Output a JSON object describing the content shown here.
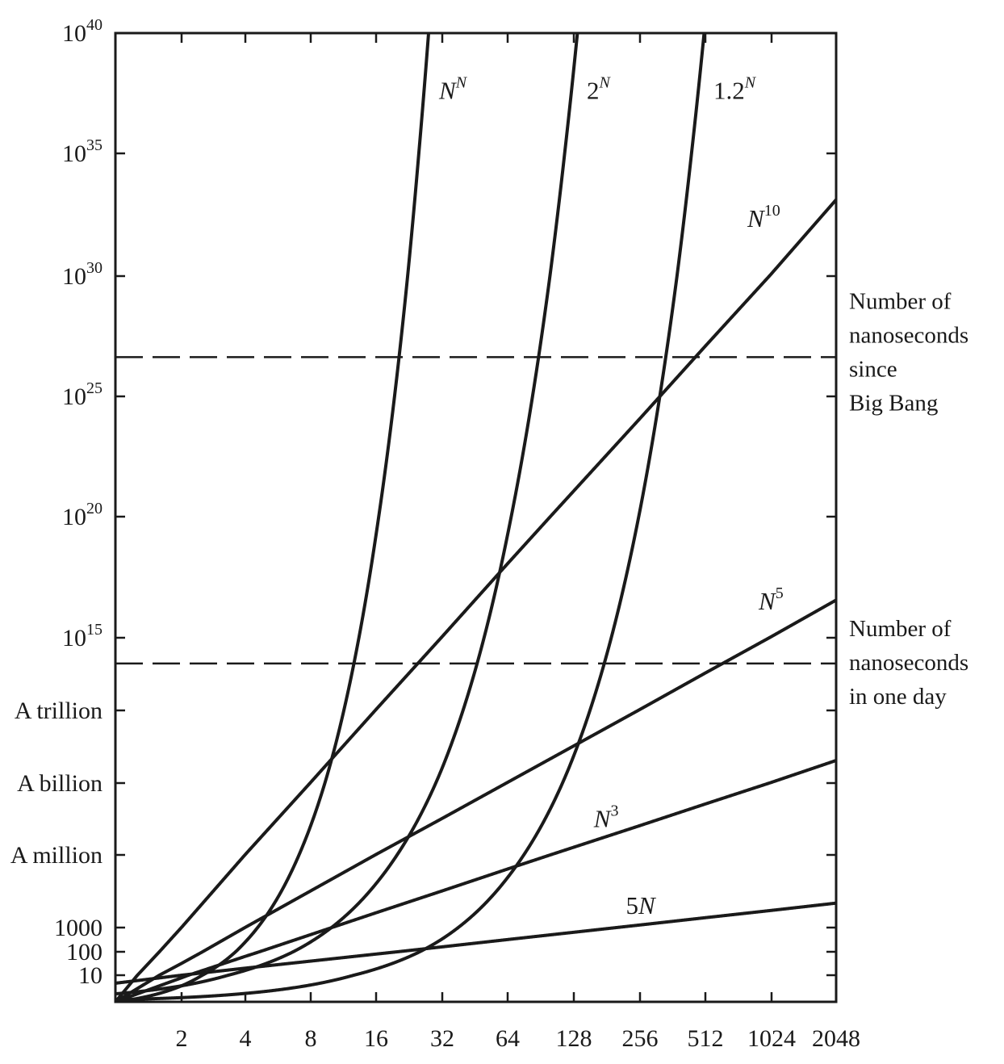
{
  "chart_data": {
    "type": "line",
    "title": "",
    "xlabel": "",
    "ylabel": "",
    "x_scale": "log2",
    "y_scale": "log10",
    "xlim": [
      1,
      2048
    ],
    "ylim": [
      1,
      1e+40
    ],
    "x_ticks": [
      2,
      4,
      8,
      16,
      32,
      64,
      128,
      256,
      512,
      1024,
      2048
    ],
    "x_tick_labels": [
      "2",
      "4",
      "8",
      "16",
      "32",
      "64",
      "128",
      "256",
      "512",
      "1024",
      "2048"
    ],
    "y_ticks": [
      {
        "value": 10,
        "base": "10",
        "exp": ""
      },
      {
        "value": 100,
        "base": "100",
        "exp": ""
      },
      {
        "value": 1000,
        "base": "1000",
        "exp": ""
      },
      {
        "value": 1000000.0,
        "base": "A million",
        "exp": ""
      },
      {
        "value": 1000000000.0,
        "base": "A billion",
        "exp": ""
      },
      {
        "value": 1000000000000.0,
        "base": "A trillion",
        "exp": ""
      },
      {
        "value": 1000000000000000.0,
        "base": "10",
        "exp": "15"
      },
      {
        "value": 1e+20,
        "base": "10",
        "exp": "20"
      },
      {
        "value": 1e+25,
        "base": "10",
        "exp": "25"
      },
      {
        "value": 1e+30,
        "base": "10",
        "exp": "30"
      },
      {
        "value": 1e+35,
        "base": "10",
        "exp": "35"
      },
      {
        "value": 1e+40,
        "base": "10",
        "exp": "40"
      }
    ],
    "grid": false,
    "legend": "none",
    "series": [
      {
        "name": "5N",
        "formula": "5N",
        "label_parts": [
          {
            "text": "5",
            "style": "upright"
          },
          {
            "text": "N",
            "style": "italic"
          }
        ],
        "label_x": 300
      },
      {
        "name": "N^3",
        "formula": "N^3",
        "label_parts": [
          {
            "text": "N",
            "style": "italic"
          },
          {
            "text": "3",
            "style": "sup"
          }
        ],
        "label_x": 200
      },
      {
        "name": "N^5",
        "formula": "N^5",
        "label_parts": [
          {
            "text": "N",
            "style": "italic"
          },
          {
            "text": "5",
            "style": "sup"
          }
        ],
        "label_x": 1024
      },
      {
        "name": "N^10",
        "formula": "N^10",
        "label_parts": [
          {
            "text": "N",
            "style": "italic"
          },
          {
            "text": "10",
            "style": "sup"
          }
        ],
        "label_x": 1024
      },
      {
        "name": "1.2^N",
        "formula": "1.2^N",
        "label_parts": [
          {
            "text": "1.2",
            "style": "upright"
          },
          {
            "text": "N",
            "style": "sup-italic"
          }
        ],
        "label_x": 512
      },
      {
        "name": "2^N",
        "formula": "2^N",
        "label_parts": [
          {
            "text": "2",
            "style": "upright"
          },
          {
            "text": "N",
            "style": "sup-italic"
          }
        ],
        "label_x": 128
      },
      {
        "name": "N^N",
        "formula": "N^N",
        "label_parts": [
          {
            "text": "N",
            "style": "italic"
          },
          {
            "text": "N",
            "style": "sup-italic"
          }
        ],
        "label_x": 32
      }
    ],
    "reference_lines": [
      {
        "name": "nanoseconds-since-big-bang",
        "y": 4.3e+26,
        "style": "dashed",
        "label_lines": [
          "Number of",
          "nanoseconds",
          "since",
          "Big Bang"
        ]
      },
      {
        "name": "nanoseconds-in-one-day",
        "y": 86400000000000.0,
        "style": "dashed",
        "label_lines": [
          "Number of",
          "nanoseconds",
          "in one day"
        ]
      }
    ]
  }
}
